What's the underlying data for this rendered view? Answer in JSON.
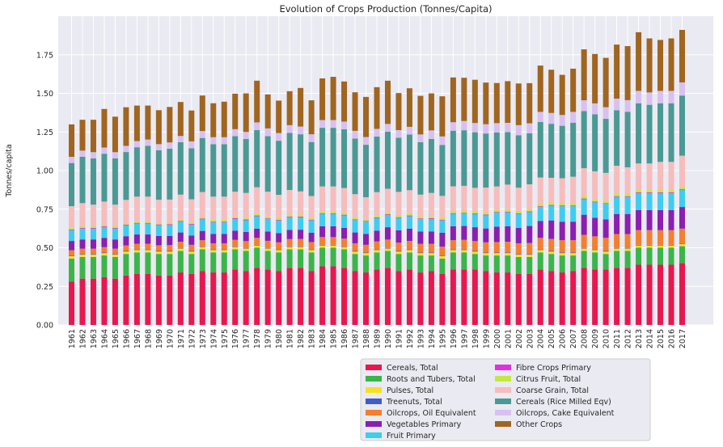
{
  "chart_data": {
    "type": "bar",
    "stacked": true,
    "title": "Evolution of Crops Production (Tonnes/Capita)",
    "xlabel": "",
    "ylabel": "Tonnes/capita",
    "ylim": [
      0,
      2.0
    ],
    "yticks": [
      "0.00",
      "0.25",
      "0.50",
      "0.75",
      "1.00",
      "1.25",
      "1.50",
      "1.75"
    ],
    "grid": true,
    "legend_position": "bottom-center",
    "categories": [
      "1961",
      "1962",
      "1963",
      "1964",
      "1965",
      "1966",
      "1967",
      "1968",
      "1969",
      "1970",
      "1971",
      "1972",
      "1973",
      "1974",
      "1975",
      "1976",
      "1977",
      "1978",
      "1979",
      "1980",
      "1981",
      "1982",
      "1983",
      "1984",
      "1985",
      "1986",
      "1987",
      "1988",
      "1989",
      "1990",
      "1991",
      "1992",
      "1993",
      "1994",
      "1995",
      "1996",
      "1997",
      "1998",
      "1999",
      "2000",
      "2001",
      "2002",
      "2003",
      "2004",
      "2005",
      "2006",
      "2007",
      "2008",
      "2009",
      "2010",
      "2011",
      "2012",
      "2013",
      "2014",
      "2015",
      "2016",
      "2017"
    ],
    "series": [
      {
        "name": "Cereals, Total",
        "color": "#e8174f",
        "values": [
          0.28,
          0.3,
          0.3,
          0.31,
          0.3,
          0.32,
          0.33,
          0.33,
          0.32,
          0.32,
          0.34,
          0.33,
          0.35,
          0.34,
          0.34,
          0.36,
          0.35,
          0.37,
          0.36,
          0.35,
          0.37,
          0.37,
          0.35,
          0.38,
          0.38,
          0.37,
          0.35,
          0.34,
          0.36,
          0.37,
          0.35,
          0.36,
          0.34,
          0.35,
          0.33,
          0.36,
          0.36,
          0.36,
          0.35,
          0.34,
          0.34,
          0.33,
          0.33,
          0.36,
          0.35,
          0.34,
          0.35,
          0.37,
          0.36,
          0.36,
          0.37,
          0.37,
          0.39,
          0.39,
          0.39,
          0.39,
          0.4
        ]
      },
      {
        "name": "Roots and Tubers, Total",
        "color": "#3bb54a",
        "values": [
          0.15,
          0.14,
          0.14,
          0.14,
          0.14,
          0.14,
          0.14,
          0.14,
          0.14,
          0.14,
          0.14,
          0.13,
          0.14,
          0.13,
          0.13,
          0.13,
          0.13,
          0.13,
          0.12,
          0.12,
          0.12,
          0.12,
          0.12,
          0.12,
          0.12,
          0.12,
          0.11,
          0.11,
          0.11,
          0.11,
          0.11,
          0.11,
          0.11,
          0.1,
          0.1,
          0.11,
          0.11,
          0.1,
          0.1,
          0.11,
          0.11,
          0.11,
          0.11,
          0.11,
          0.11,
          0.11,
          0.1,
          0.11,
          0.11,
          0.1,
          0.11,
          0.11,
          0.11,
          0.11,
          0.11,
          0.11,
          0.11
        ]
      },
      {
        "name": "Pulses, Total",
        "color": "#f7e11d",
        "values": [
          0.015,
          0.015,
          0.015,
          0.015,
          0.015,
          0.015,
          0.015,
          0.015,
          0.015,
          0.015,
          0.015,
          0.015,
          0.015,
          0.015,
          0.015,
          0.015,
          0.015,
          0.015,
          0.015,
          0.015,
          0.015,
          0.015,
          0.015,
          0.015,
          0.015,
          0.015,
          0.015,
          0.015,
          0.015,
          0.015,
          0.015,
          0.015,
          0.015,
          0.015,
          0.015,
          0.015,
          0.015,
          0.015,
          0.015,
          0.015,
          0.015,
          0.015,
          0.015,
          0.015,
          0.015,
          0.015,
          0.015,
          0.015,
          0.015,
          0.015,
          0.015,
          0.015,
          0.015,
          0.015,
          0.015,
          0.015,
          0.015
        ]
      },
      {
        "name": "Treenuts, Total",
        "color": "#3f5cc8",
        "values": [
          0.004,
          0.004,
          0.004,
          0.004,
          0.004,
          0.004,
          0.004,
          0.004,
          0.004,
          0.004,
          0.004,
          0.004,
          0.004,
          0.004,
          0.004,
          0.004,
          0.004,
          0.004,
          0.004,
          0.004,
          0.004,
          0.004,
          0.004,
          0.004,
          0.004,
          0.004,
          0.004,
          0.004,
          0.004,
          0.004,
          0.004,
          0.004,
          0.004,
          0.004,
          0.004,
          0.004,
          0.004,
          0.004,
          0.004,
          0.004,
          0.004,
          0.004,
          0.004,
          0.004,
          0.004,
          0.004,
          0.004,
          0.004,
          0.004,
          0.004,
          0.004,
          0.004,
          0.004,
          0.004,
          0.004,
          0.004,
          0.004
        ]
      },
      {
        "name": "Oilcrops, Oil Equivalent",
        "color": "#f47f2f",
        "values": [
          0.035,
          0.035,
          0.035,
          0.035,
          0.035,
          0.036,
          0.037,
          0.037,
          0.037,
          0.038,
          0.04,
          0.04,
          0.04,
          0.04,
          0.04,
          0.042,
          0.044,
          0.045,
          0.046,
          0.046,
          0.047,
          0.048,
          0.048,
          0.05,
          0.05,
          0.05,
          0.05,
          0.05,
          0.052,
          0.054,
          0.054,
          0.055,
          0.056,
          0.057,
          0.058,
          0.06,
          0.062,
          0.064,
          0.066,
          0.068,
          0.07,
          0.07,
          0.072,
          0.075,
          0.078,
          0.08,
          0.08,
          0.085,
          0.085,
          0.085,
          0.09,
          0.09,
          0.095,
          0.095,
          0.095,
          0.095,
          0.095
        ]
      },
      {
        "name": "Vegetables Primary",
        "color": "#8a1fb2",
        "values": [
          0.06,
          0.06,
          0.06,
          0.06,
          0.06,
          0.06,
          0.06,
          0.06,
          0.06,
          0.06,
          0.06,
          0.06,
          0.06,
          0.06,
          0.06,
          0.06,
          0.06,
          0.06,
          0.06,
          0.06,
          0.06,
          0.06,
          0.06,
          0.07,
          0.07,
          0.07,
          0.07,
          0.07,
          0.07,
          0.08,
          0.08,
          0.08,
          0.08,
          0.08,
          0.09,
          0.09,
          0.09,
          0.09,
          0.09,
          0.1,
          0.1,
          0.1,
          0.11,
          0.11,
          0.12,
          0.12,
          0.12,
          0.13,
          0.12,
          0.12,
          0.13,
          0.13,
          0.13,
          0.13,
          0.13,
          0.13,
          0.14
        ]
      },
      {
        "name": "Fruit Primary",
        "color": "#3dcdf0",
        "values": [
          0.07,
          0.07,
          0.07,
          0.07,
          0.07,
          0.07,
          0.07,
          0.07,
          0.07,
          0.07,
          0.07,
          0.07,
          0.075,
          0.075,
          0.075,
          0.075,
          0.075,
          0.08,
          0.08,
          0.08,
          0.08,
          0.08,
          0.08,
          0.08,
          0.08,
          0.08,
          0.08,
          0.08,
          0.08,
          0.08,
          0.08,
          0.08,
          0.08,
          0.08,
          0.08,
          0.08,
          0.08,
          0.085,
          0.085,
          0.09,
          0.09,
          0.09,
          0.09,
          0.09,
          0.095,
          0.1,
          0.1,
          0.1,
          0.1,
          0.1,
          0.11,
          0.11,
          0.11,
          0.11,
          0.11,
          0.11,
          0.11
        ]
      },
      {
        "name": "Fibre Crops Primary",
        "color": "#e230e0",
        "values": [
          0.005,
          0.005,
          0.005,
          0.005,
          0.005,
          0.005,
          0.005,
          0.005,
          0.005,
          0.005,
          0.005,
          0.005,
          0.005,
          0.005,
          0.005,
          0.005,
          0.005,
          0.005,
          0.005,
          0.005,
          0.005,
          0.005,
          0.005,
          0.005,
          0.005,
          0.005,
          0.005,
          0.005,
          0.005,
          0.005,
          0.005,
          0.005,
          0.005,
          0.005,
          0.005,
          0.005,
          0.005,
          0.005,
          0.005,
          0.005,
          0.005,
          0.005,
          0.005,
          0.005,
          0.005,
          0.005,
          0.005,
          0.005,
          0.005,
          0.005,
          0.005,
          0.005,
          0.005,
          0.005,
          0.005,
          0.005,
          0.005
        ]
      },
      {
        "name": "Citrus Fruit, Total",
        "color": "#c4e83f",
        "values": [
          0.01,
          0.01,
          0.01,
          0.01,
          0.01,
          0.01,
          0.01,
          0.01,
          0.01,
          0.01,
          0.01,
          0.01,
          0.012,
          0.012,
          0.012,
          0.012,
          0.012,
          0.013,
          0.013,
          0.013,
          0.013,
          0.013,
          0.013,
          0.013,
          0.013,
          0.013,
          0.013,
          0.013,
          0.014,
          0.014,
          0.014,
          0.014,
          0.014,
          0.014,
          0.014,
          0.014,
          0.015,
          0.015,
          0.015,
          0.015,
          0.015,
          0.015,
          0.015,
          0.016,
          0.016,
          0.016,
          0.016,
          0.016,
          0.016,
          0.016,
          0.017,
          0.017,
          0.017,
          0.017,
          0.017,
          0.017,
          0.017
        ]
      },
      {
        "name": "Coarse Grain, Total",
        "color": "#f7bcbc",
        "values": [
          0.14,
          0.15,
          0.14,
          0.15,
          0.14,
          0.15,
          0.16,
          0.16,
          0.15,
          0.15,
          0.16,
          0.15,
          0.16,
          0.15,
          0.15,
          0.16,
          0.16,
          0.17,
          0.16,
          0.15,
          0.16,
          0.15,
          0.14,
          0.16,
          0.16,
          0.16,
          0.15,
          0.14,
          0.15,
          0.15,
          0.15,
          0.15,
          0.14,
          0.15,
          0.14,
          0.16,
          0.16,
          0.15,
          0.16,
          0.15,
          0.16,
          0.15,
          0.16,
          0.17,
          0.16,
          0.16,
          0.17,
          0.18,
          0.18,
          0.18,
          0.18,
          0.17,
          0.17,
          0.17,
          0.18,
          0.18,
          0.2
        ]
      },
      {
        "name": "Cereals (Rice Milled Eqv)",
        "color": "#4b9994",
        "values": [
          0.28,
          0.3,
          0.3,
          0.31,
          0.3,
          0.31,
          0.32,
          0.33,
          0.32,
          0.33,
          0.34,
          0.33,
          0.35,
          0.34,
          0.34,
          0.36,
          0.35,
          0.37,
          0.36,
          0.35,
          0.37,
          0.37,
          0.35,
          0.38,
          0.38,
          0.38,
          0.36,
          0.34,
          0.36,
          0.37,
          0.35,
          0.36,
          0.34,
          0.35,
          0.33,
          0.36,
          0.36,
          0.36,
          0.35,
          0.35,
          0.34,
          0.34,
          0.33,
          0.36,
          0.35,
          0.34,
          0.35,
          0.37,
          0.37,
          0.35,
          0.36,
          0.36,
          0.39,
          0.38,
          0.38,
          0.38,
          0.39
        ]
      },
      {
        "name": "Oilcrops, Cake Equivalent",
        "color": "#d9c0f1",
        "values": [
          0.04,
          0.04,
          0.04,
          0.04,
          0.04,
          0.04,
          0.04,
          0.04,
          0.04,
          0.04,
          0.04,
          0.045,
          0.045,
          0.045,
          0.045,
          0.045,
          0.045,
          0.05,
          0.05,
          0.05,
          0.05,
          0.05,
          0.05,
          0.05,
          0.05,
          0.05,
          0.05,
          0.05,
          0.05,
          0.05,
          0.05,
          0.05,
          0.05,
          0.055,
          0.055,
          0.055,
          0.06,
          0.06,
          0.06,
          0.06,
          0.06,
          0.065,
          0.065,
          0.065,
          0.07,
          0.07,
          0.07,
          0.07,
          0.07,
          0.075,
          0.075,
          0.075,
          0.08,
          0.08,
          0.08,
          0.08,
          0.085
        ]
      },
      {
        "name": "Other Crops",
        "color": "#a0651f",
        "values": [
          0.21,
          0.2,
          0.21,
          0.25,
          0.23,
          0.25,
          0.23,
          0.22,
          0.22,
          0.23,
          0.22,
          0.2,
          0.23,
          0.22,
          0.23,
          0.23,
          0.25,
          0.27,
          0.22,
          0.21,
          0.22,
          0.25,
          0.22,
          0.27,
          0.28,
          0.26,
          0.25,
          0.26,
          0.27,
          0.28,
          0.24,
          0.25,
          0.25,
          0.24,
          0.26,
          0.29,
          0.28,
          0.28,
          0.27,
          0.26,
          0.27,
          0.27,
          0.26,
          0.3,
          0.28,
          0.26,
          0.28,
          0.33,
          0.32,
          0.32,
          0.35,
          0.35,
          0.38,
          0.35,
          0.33,
          0.34,
          0.34
        ]
      }
    ]
  }
}
